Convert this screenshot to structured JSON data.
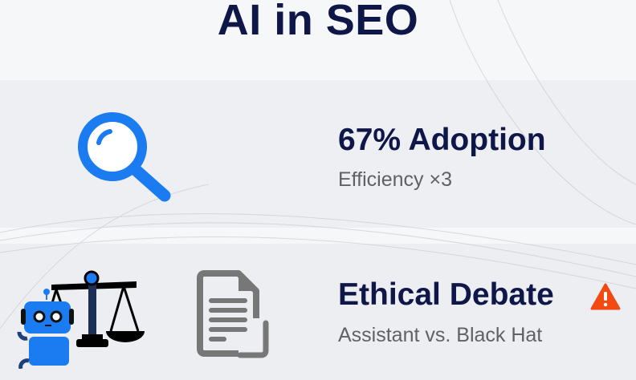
{
  "title": "AI in SEO",
  "sections": [
    {
      "heading": "67% Adoption",
      "subtext": "Efficiency ×3",
      "icon": "magnifier-icon"
    },
    {
      "heading": "Ethical Debate",
      "subtext": "Assistant vs. Black Hat",
      "icon": "warning-icon",
      "extra_icons": [
        "robot-icon",
        "scales-icon",
        "document-icon"
      ]
    }
  ],
  "colors": {
    "title": "#0e1747",
    "accent_blue": "#1a7cf0",
    "warning": "#f24a12",
    "subtext": "#5f6166"
  }
}
